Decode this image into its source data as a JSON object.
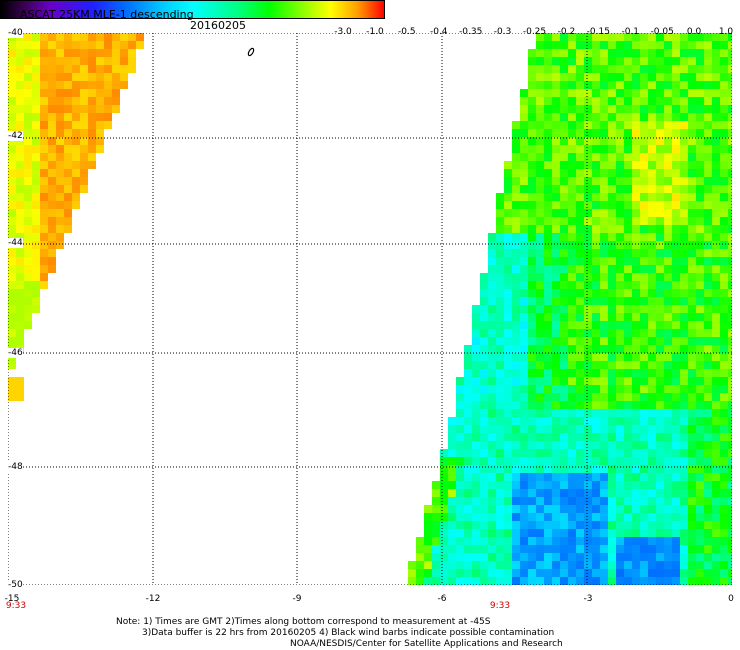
{
  "header": {
    "title": "ASCAT 25KM MLE-1 descending",
    "date": "20160205"
  },
  "colorbar": {
    "labels": [
      "-3.0",
      "-1.0",
      "-0.5",
      "-0.4",
      "-0.35",
      "-0.3",
      "-0.25",
      "-0.2",
      "-0.15",
      "-0.1",
      "-0.05",
      "0.0",
      "1.0"
    ]
  },
  "axes": {
    "y_labels": [
      "-40",
      "-42",
      "-44",
      "-46",
      "-48",
      "-50"
    ],
    "x_labels": [
      "-15",
      "-12",
      "-9",
      "-6",
      "-3",
      "0"
    ],
    "time_labels": [
      "9:33",
      "9:33"
    ]
  },
  "notes": {
    "line1": "Note: 1) Times are GMT 2)Times along bottom correspond to measurement at -45S",
    "line2": "3)Data buffer is 22 hrs from 20160205 4) Black wind barbs indicate possible contamination",
    "line3": "NOAA/NESDIS/Center for Satellite Applications and Research"
  },
  "colors": {
    "grid": "#000000",
    "time_label": "#d00000",
    "background": "#ffffff"
  }
}
